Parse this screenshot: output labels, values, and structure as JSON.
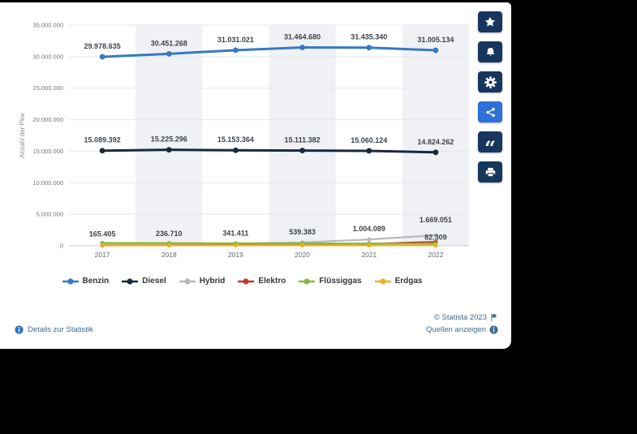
{
  "chart_data": {
    "type": "line",
    "title": "",
    "xlabel": "",
    "ylabel": "Anzahl der Pkw",
    "categories": [
      "2017",
      "2018",
      "2019",
      "2020",
      "2021",
      "2022"
    ],
    "ylim": [
      0,
      35000000
    ],
    "yticks": [
      0,
      5000000,
      10000000,
      15000000,
      20000000,
      25000000,
      30000000,
      35000000
    ],
    "grid": true,
    "legend_position": "bottom",
    "series": [
      {
        "name": "Benzin",
        "color": "#3779c2",
        "labels": "all",
        "values": [
          29978635,
          30451268,
          31031021,
          31464680,
          31435340,
          31005134
        ]
      },
      {
        "name": "Diesel",
        "color": "#152a40",
        "labels": "all",
        "values": [
          15089392,
          15225296,
          15153364,
          15111382,
          15060124,
          14824262
        ]
      },
      {
        "name": "Hybrid",
        "color": "#b4b9be",
        "labels": "all",
        "values": [
          165405,
          236710,
          341411,
          539383,
          1004089,
          1669051
        ]
      },
      {
        "name": "Elektro",
        "color": "#c0392b",
        "labels": "none",
        "values": [
          55000,
          85000,
          140000,
          240000,
          310000,
          620000
        ]
      },
      {
        "name": "Flüssiggas",
        "color": "#84b940",
        "labels": "none",
        "values": [
          450000,
          425000,
          400000,
          375000,
          350000,
          365000
        ]
      },
      {
        "name": "Erdgas",
        "color": "#e8b124",
        "labels": "last",
        "values": [
          80000,
          79000,
          81000,
          82000,
          83000,
          82309
        ]
      }
    ]
  },
  "toolbar": {
    "active": "share",
    "buttons": [
      {
        "name": "favorite",
        "icon": "star-icon"
      },
      {
        "name": "notification",
        "icon": "bell-icon"
      },
      {
        "name": "settings",
        "icon": "gear-icon"
      },
      {
        "name": "share",
        "icon": "share-icon"
      },
      {
        "name": "citation",
        "icon": "quote-icon"
      },
      {
        "name": "print",
        "icon": "printer-icon"
      }
    ]
  },
  "footer": {
    "details_link": "Details zur Statistik",
    "copyright": "© Statista 2023",
    "sources_link": "Quellen anzeigen"
  },
  "colors": {
    "page_background": "#000000",
    "card_background": "#ffffff",
    "toolbar_button": "#17365d",
    "toolbar_button_active": "#2e6fd8",
    "plot_band": "#f0f1f4",
    "gridline": "#e4e7ea",
    "axis_line": "#c7ccd1",
    "footer_link": "#41698f",
    "info_icon": "#2f72c5"
  }
}
